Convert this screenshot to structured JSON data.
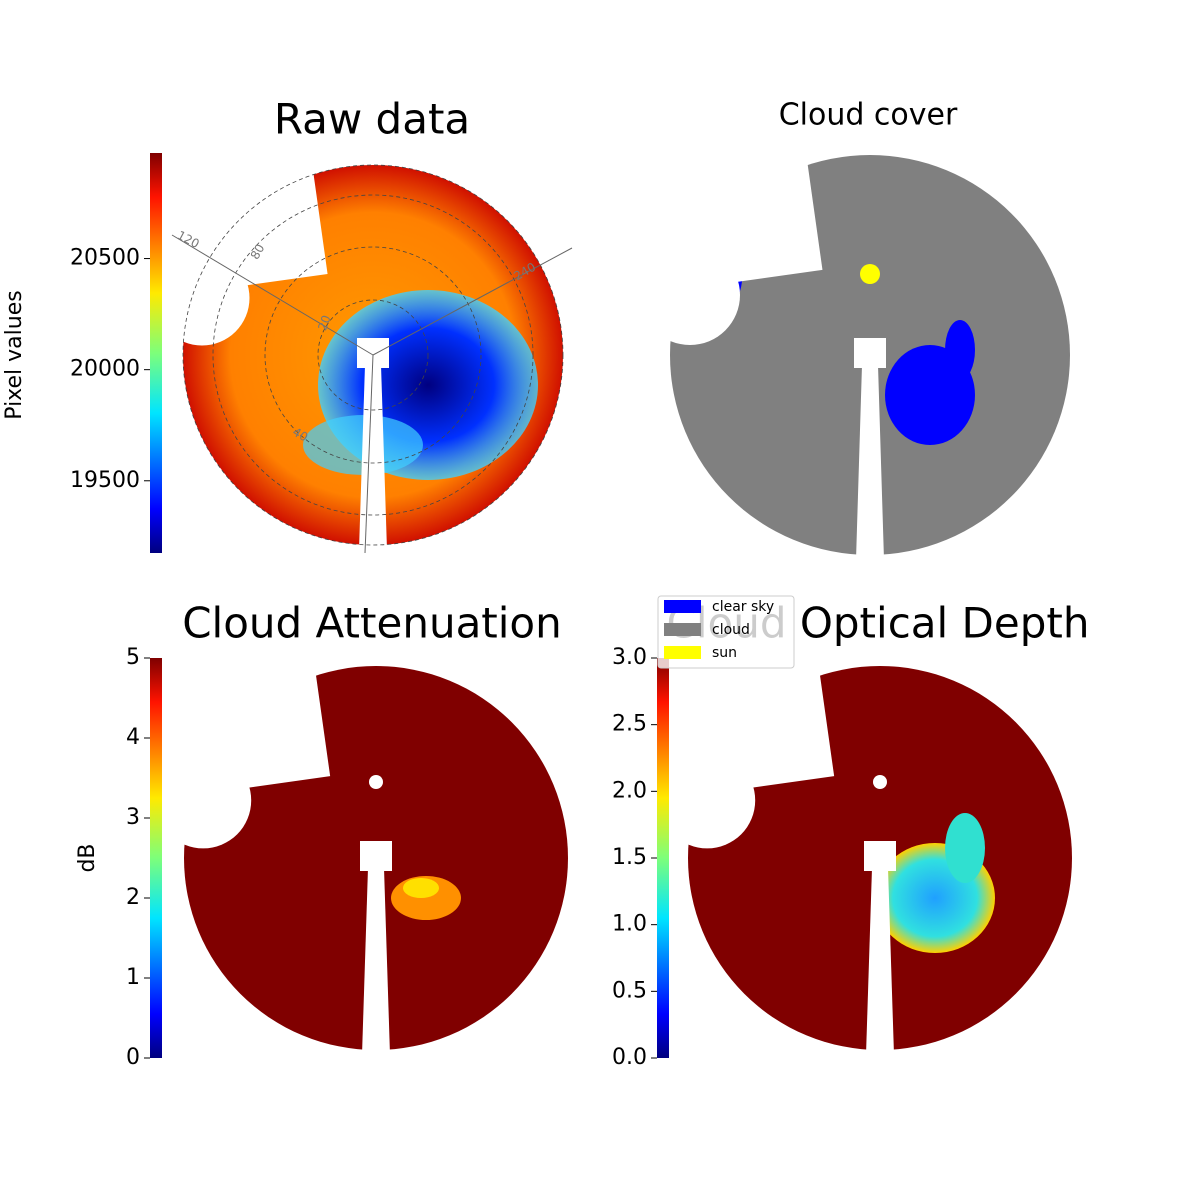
{
  "chart_data": [
    {
      "type": "heatmap",
      "title": "Raw data",
      "ylabel": "Pixel values",
      "ylim": [
        19175,
        20975
      ],
      "yticks": [
        19500,
        20000,
        20500
      ],
      "annotations": [
        "120",
        "80",
        "20",
        "40",
        "240"
      ]
    },
    {
      "type": "category-map",
      "title": "Cloud cover",
      "legend": [
        {
          "name": "clear sky",
          "color": "#0000ff"
        },
        {
          "name": "cloud",
          "color": "#808080"
        },
        {
          "name": "sun",
          "color": "#ffff00"
        }
      ]
    },
    {
      "type": "heatmap",
      "title": "Cloud Attenuation",
      "ylabel": "dB",
      "ylim": [
        0,
        5
      ],
      "yticks": [
        0,
        1,
        2,
        3,
        4,
        5
      ]
    },
    {
      "type": "heatmap",
      "title": "Cloud Optical Depth",
      "ylim": [
        0,
        3
      ],
      "yticks": [
        {
          "value": 0,
          "label": "0.0"
        },
        {
          "value": 0.5,
          "label": "0.5"
        },
        {
          "value": 1,
          "label": "1.0"
        },
        {
          "value": 1.5,
          "label": "1.5"
        },
        {
          "value": 2,
          "label": "2.0"
        },
        {
          "value": 2.5,
          "label": "2.5"
        },
        {
          "value": 3,
          "label": "3.0"
        }
      ]
    }
  ]
}
